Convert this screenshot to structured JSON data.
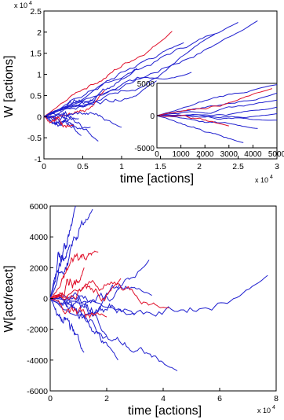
{
  "colors": {
    "blue": "#1f1fcf",
    "red": "#e0102a",
    "axis": "#000000"
  },
  "chart_data": [
    {
      "type": "line",
      "title": "",
      "xlabel": "time [actions]",
      "ylabel": "W [actions]",
      "xlim": [
        0,
        30000
      ],
      "ylim": [
        -10000,
        25000
      ],
      "x_ticks": [
        "0",
        "0.5",
        "1",
        "1.5",
        "2",
        "2.5",
        "3"
      ],
      "y_ticks": [
        "-1",
        "-0.5",
        "0",
        "0.5",
        "1",
        "1.5",
        "2",
        "2.5"
      ],
      "x_exponent": "x 10",
      "x_exponent_power": "4",
      "y_exponent": "x 10",
      "y_exponent_power": "4",
      "legend": "none",
      "grid": false,
      "series": [
        {
          "color": "blue",
          "x": [
            0,
            27500
          ],
          "y": [
            0,
            22700
          ]
        },
        {
          "color": "blue",
          "x": [
            0,
            25000
          ],
          "y": [
            0,
            22300
          ]
        },
        {
          "color": "blue",
          "x": [
            0,
            22000
          ],
          "y": [
            0,
            19500
          ]
        },
        {
          "color": "red",
          "x": [
            0,
            16500
          ],
          "y": [
            0,
            20200
          ]
        },
        {
          "color": "blue",
          "x": [
            0,
            18000
          ],
          "y": [
            0,
            17500
          ]
        },
        {
          "color": "blue",
          "x": [
            0,
            12000
          ],
          "y": [
            0,
            11500
          ]
        },
        {
          "color": "red",
          "x": [
            0,
            7800
          ],
          "y": [
            0,
            6200
          ]
        },
        {
          "color": "blue",
          "x": [
            0,
            14500
          ],
          "y": [
            0,
            8500
          ]
        },
        {
          "color": "blue",
          "x": [
            0,
            19000
          ],
          "y": [
            0,
            10500
          ]
        },
        {
          "color": "blue",
          "x": [
            0,
            6500
          ],
          "y": [
            0,
            2800
          ]
        },
        {
          "color": "blue",
          "x": [
            0,
            3500
          ],
          "y": [
            0,
            700
          ]
        },
        {
          "color": "blue",
          "x": [
            0,
            4500
          ],
          "y": [
            0,
            -500
          ]
        },
        {
          "color": "blue",
          "x": [
            0,
            6000
          ],
          "y": [
            0,
            -2500
          ]
        },
        {
          "color": "blue",
          "x": [
            0,
            4800
          ],
          "y": [
            0,
            -4500
          ]
        },
        {
          "color": "blue",
          "x": [
            0,
            7000
          ],
          "y": [
            0,
            -5800
          ]
        },
        {
          "color": "blue",
          "x": [
            0,
            10000
          ],
          "y": [
            0,
            -2500
          ]
        },
        {
          "color": "red",
          "x": [
            0,
            3800
          ],
          "y": [
            0,
            -2000
          ]
        }
      ],
      "inset": {
        "type": "line",
        "xlim": [
          0,
          5000
        ],
        "ylim": [
          -5000,
          5000
        ],
        "x_ticks": [
          "0",
          "1000",
          "2000",
          "3000",
          "4000",
          "5000"
        ],
        "y_ticks": [
          "-5000",
          "0",
          "5000"
        ],
        "series": [
          {
            "color": "blue",
            "x": [
              0,
              5000
            ],
            "y": [
              0,
              4800
            ]
          },
          {
            "color": "blue",
            "x": [
              0,
              5000
            ],
            "y": [
              0,
              3500
            ]
          },
          {
            "color": "blue",
            "x": [
              0,
              5000
            ],
            "y": [
              0,
              2400
            ]
          },
          {
            "color": "blue",
            "x": [
              0,
              5000
            ],
            "y": [
              0,
              1300
            ]
          },
          {
            "color": "blue",
            "x": [
              0,
              5000
            ],
            "y": [
              0,
              300
            ]
          },
          {
            "color": "blue",
            "x": [
              0,
              5000
            ],
            "y": [
              0,
              -700
            ]
          },
          {
            "color": "blue",
            "x": [
              0,
              4200
            ],
            "y": [
              0,
              -2000
            ]
          },
          {
            "color": "blue",
            "x": [
              0,
              3600
            ],
            "y": [
              0,
              -4200
            ]
          },
          {
            "color": "red",
            "x": [
              0,
              4800
            ],
            "y": [
              0,
              4200
            ]
          },
          {
            "color": "red",
            "x": [
              0,
              3000
            ],
            "y": [
              0,
              -1600
            ]
          }
        ]
      }
    },
    {
      "type": "line",
      "title": "",
      "xlabel": "time [actions]",
      "ylabel": "W[act/react]",
      "xlim": [
        0,
        80000
      ],
      "ylim": [
        -6000,
        6000
      ],
      "x_ticks": [
        "0",
        "2",
        "4",
        "6",
        "8"
      ],
      "y_ticks": [
        "-6000",
        "-4000",
        "-2000",
        "0",
        "2000",
        "4000",
        "6000"
      ],
      "x_exponent": "x 10",
      "x_exponent_power": "4",
      "legend": "none",
      "grid": false,
      "series": [
        {
          "color": "blue",
          "x": [
            0,
            9000
          ],
          "y": [
            0,
            6000
          ]
        },
        {
          "color": "blue",
          "x": [
            0,
            15000
          ],
          "y": [
            0,
            5800
          ]
        },
        {
          "color": "blue",
          "x": [
            0,
            7000
          ],
          "y": [
            0,
            3500
          ]
        },
        {
          "color": "blue",
          "x": [
            0,
            35000
          ],
          "y": [
            0,
            2500
          ]
        },
        {
          "color": "blue",
          "x": [
            0,
            77000
          ],
          "y": [
            0,
            1500
          ]
        },
        {
          "color": "blue",
          "x": [
            0,
            36000
          ],
          "y": [
            0,
            200
          ]
        },
        {
          "color": "blue",
          "x": [
            0,
            30000
          ],
          "y": [
            0,
            -1000
          ]
        },
        {
          "color": "blue",
          "x": [
            0,
            45000
          ],
          "y": [
            0,
            -4700
          ]
        },
        {
          "color": "blue",
          "x": [
            0,
            24000
          ],
          "y": [
            0,
            -4000
          ]
        },
        {
          "color": "blue",
          "x": [
            0,
            12000
          ],
          "y": [
            0,
            -3500
          ]
        },
        {
          "color": "blue",
          "x": [
            0,
            20000
          ],
          "y": [
            0,
            -2400
          ]
        },
        {
          "color": "red",
          "x": [
            0,
            17000
          ],
          "y": [
            0,
            3000
          ]
        },
        {
          "color": "red",
          "x": [
            0,
            12000
          ],
          "y": [
            0,
            2000
          ]
        },
        {
          "color": "red",
          "x": [
            0,
            25000
          ],
          "y": [
            0,
            1300
          ]
        },
        {
          "color": "red",
          "x": [
            0,
            42000
          ],
          "y": [
            0,
            -600
          ]
        },
        {
          "color": "red",
          "x": [
            0,
            20000
          ],
          "y": [
            0,
            -1200
          ]
        }
      ]
    }
  ]
}
